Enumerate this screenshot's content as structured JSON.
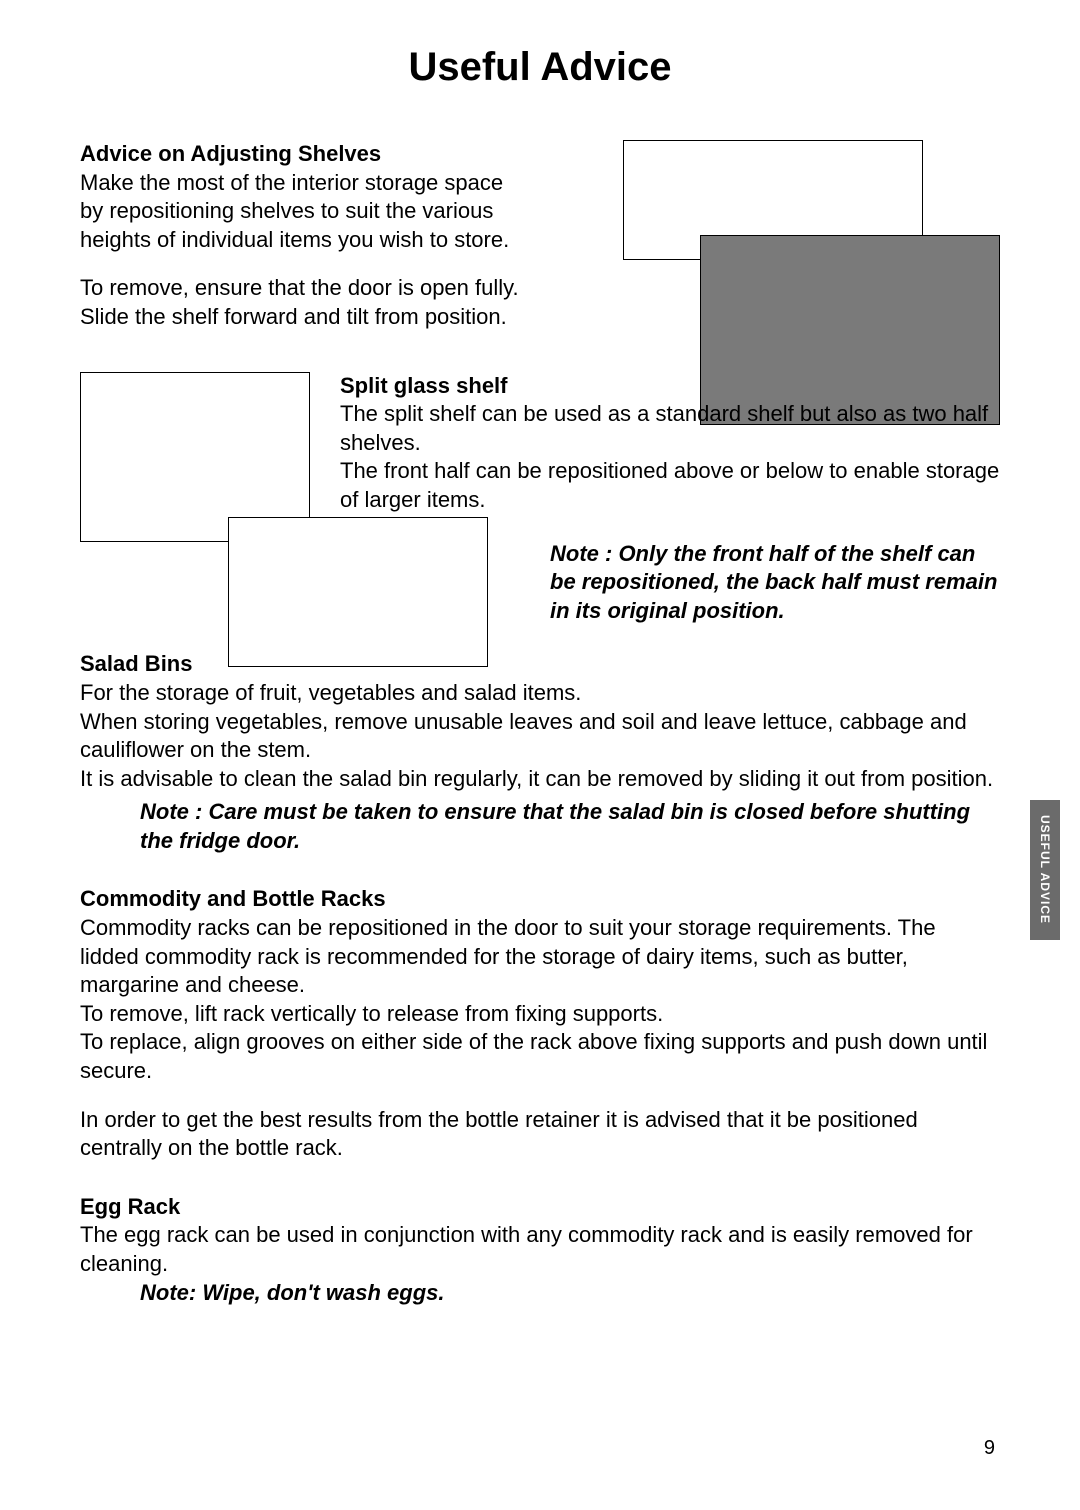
{
  "page": {
    "title": "Useful Advice",
    "number": "9",
    "side_tab": "USEFUL  ADVICE"
  },
  "shelves": {
    "heading": "Advice on Adjusting Shelves",
    "para1": "Make the most of the interior storage space by repositioning shelves to suit the various heights of individual items you wish to store.",
    "para2": "To remove, ensure that the door is open fully. Slide the shelf forward and tilt from position."
  },
  "split_shelf": {
    "heading": "Split glass shelf",
    "para1": "The split shelf can be used as a standard shelf but also as two half shelves.",
    "para2": "The front half can be repositioned above or below to enable storage of larger items.",
    "note": "Note : Only the front half of the shelf can be repositioned, the back half must remain in its original position."
  },
  "salad": {
    "heading": "Salad Bins",
    "para1": "For the storage of fruit, vegetables and salad items.",
    "para2": "When storing vegetables, remove unusable leaves and soil and leave lettuce, cabbage and cauliflower on the stem.",
    "para3": "It is advisable to clean the salad bin regularly, it can be removed by sliding it out from position.",
    "note": "Note : Care must be taken to ensure that the salad bin is closed before shutting the fridge door."
  },
  "racks": {
    "heading": "Commodity and Bottle Racks",
    "para1": "Commodity racks can be repositioned in the door to suit your storage requirements. The lidded commodity rack is recommended for the storage of dairy items, such as butter, margarine and cheese.",
    "para2": "To remove, lift rack vertically to release from fixing supports.",
    "para3": "To replace, align grooves on either side of the rack above fixing supports and push down until secure.",
    "para4": "In order to get the best results from the bottle retainer it is advised that it be positioned centrally on the bottle rack."
  },
  "egg": {
    "heading": "Egg Rack",
    "para1": "The egg rack can be used in conjunction with any commodity rack and is easily removed for cleaning.",
    "note": "Note: Wipe, don't wash eggs."
  }
}
